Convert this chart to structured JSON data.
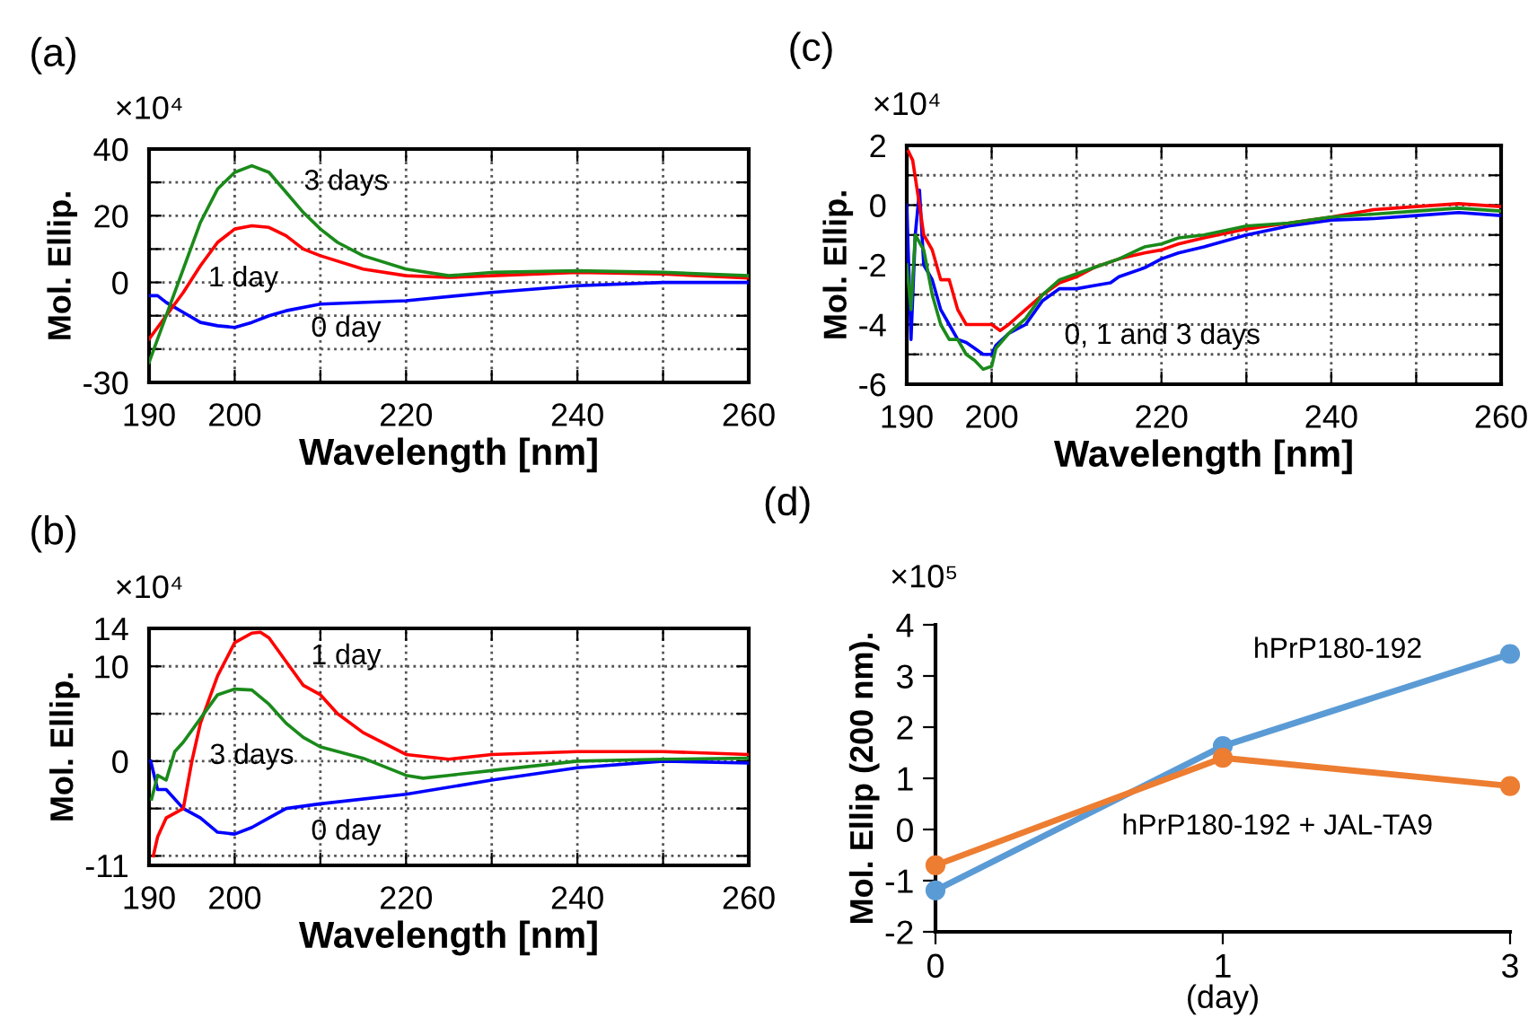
{
  "chart_data": [
    {
      "type": "line",
      "title": "(a)",
      "xlabel": "Wavelength [nm]",
      "ylabel": "Mol. Ellip.",
      "annotations": [
        "×10⁴"
      ],
      "series": [
        {
          "name": "0 day",
          "color": "#0000ff",
          "x": [
            190,
            191,
            192,
            194,
            196,
            198,
            200,
            202,
            204,
            206,
            210,
            220,
            230,
            240,
            250,
            260
          ],
          "values": [
            -4,
            -4,
            -6,
            -9,
            -12,
            -13,
            -13.5,
            -12,
            -10,
            -8.5,
            -6.5,
            -5.5,
            -3,
            -1,
            0,
            0
          ]
        },
        {
          "name": "1 day",
          "color": "#ff0000",
          "x": [
            190,
            192,
            194,
            196,
            198,
            200,
            202,
            204,
            206,
            208,
            210,
            215,
            220,
            225,
            230,
            240,
            250,
            260
          ],
          "values": [
            -17,
            -10,
            -3,
            5,
            12,
            16,
            17,
            16.5,
            14,
            10,
            8,
            4,
            2,
            1.5,
            2,
            3,
            2.5,
            1.3
          ]
        },
        {
          "name": "3 days",
          "color": "#1a8a1a",
          "x": [
            190,
            192,
            194,
            196,
            198,
            200,
            202,
            204,
            206,
            208,
            210,
            212,
            215,
            220,
            225,
            230,
            240,
            250,
            260
          ],
          "values": [
            -24,
            -10,
            4,
            18,
            28,
            33,
            35,
            33,
            27,
            21,
            16,
            12,
            8,
            4,
            2,
            3,
            3.5,
            3,
            2
          ]
        }
      ],
      "xlim": [
        190,
        260
      ],
      "ylim": [
        -30,
        40
      ],
      "xticks": [
        190,
        200,
        {
          "value": 210,
          "label": null
        },
        220,
        {
          "value": 230,
          "label": null
        },
        240,
        {
          "value": 250,
          "label": null
        },
        260
      ],
      "yticks": [
        -30,
        {
          "value": -20,
          "label": null
        },
        {
          "value": -10,
          "label": null
        },
        0,
        {
          "value": 10,
          "label": null
        },
        20,
        {
          "value": 30,
          "label": null
        },
        40
      ],
      "grid": true
    },
    {
      "type": "line",
      "title": "(c)",
      "xlabel": "Wavelength [nm]",
      "ylabel": "Mol. Ellip.",
      "annotations": [
        "×10⁴",
        "0, 1 and 3 days"
      ],
      "series": [
        {
          "color": "#0000ff",
          "x": [
            190,
            190.5,
            191,
            191.5,
            192,
            193,
            194,
            195,
            196,
            197,
            198,
            199,
            200,
            200.5,
            202,
            204,
            206,
            208,
            210,
            212,
            214,
            215,
            218,
            220,
            222,
            225,
            230,
            235,
            240,
            245,
            250,
            255,
            260
          ],
          "values": [
            0,
            -4.5,
            -1,
            0.5,
            -2,
            -2.5,
            -3.5,
            -4,
            -4.5,
            -4.6,
            -4.8,
            -5,
            -5,
            -4.7,
            -4.3,
            -4,
            -3.2,
            -2.8,
            -2.8,
            -2.7,
            -2.6,
            -2.4,
            -2.1,
            -1.8,
            -1.6,
            -1.4,
            -1.0,
            -0.7,
            -0.5,
            -0.45,
            -0.35,
            -0.25,
            -0.35
          ]
        },
        {
          "color": "#ff0000",
          "x": [
            190.2,
            190.7,
            191.5,
            192,
            193,
            194,
            195,
            196,
            197,
            198,
            200,
            201,
            202,
            204,
            206,
            208,
            210,
            212,
            215,
            218,
            220,
            222,
            225,
            230,
            235,
            240,
            245,
            250,
            255,
            260
          ],
          "values": [
            1.8,
            1.5,
            0,
            -1,
            -1.5,
            -2.5,
            -2.5,
            -3.5,
            -4,
            -4,
            -4,
            -4.2,
            -4,
            -3.5,
            -3,
            -2.6,
            -2.4,
            -2.1,
            -1.8,
            -1.6,
            -1.5,
            -1.3,
            -1.1,
            -0.8,
            -0.6,
            -0.4,
            -0.15,
            -0.05,
            0.05,
            -0.05
          ]
        },
        {
          "color": "#1a8a1a",
          "x": [
            190,
            190.5,
            191,
            192,
            193,
            194,
            195,
            196,
            197,
            198,
            199,
            200,
            200.5,
            202,
            204,
            206,
            208,
            210,
            212,
            215,
            218,
            220,
            222,
            225,
            230,
            235,
            240,
            245,
            250,
            255,
            260
          ],
          "values": [
            -2,
            -3.5,
            -1,
            -1.5,
            -3,
            -4,
            -4.5,
            -4.5,
            -5,
            -5.2,
            -5.5,
            -5.4,
            -4.8,
            -4.3,
            -3.8,
            -3,
            -2.5,
            -2.3,
            -2.1,
            -1.8,
            -1.4,
            -1.3,
            -1.1,
            -1.0,
            -0.7,
            -0.6,
            -0.4,
            -0.3,
            -0.2,
            -0.1,
            -0.2
          ]
        }
      ],
      "xlim": [
        190,
        260
      ],
      "ylim": [
        -6,
        2
      ],
      "xticks": [
        190,
        200,
        {
          "value": 210,
          "label": null
        },
        220,
        {
          "value": 230,
          "label": null
        },
        240,
        {
          "value": 250,
          "label": null
        },
        260
      ],
      "yticks": [
        -6,
        {
          "value": -5,
          "label": null
        },
        -4,
        {
          "value": -3,
          "label": null
        },
        -2,
        {
          "value": -1,
          "label": null
        },
        0,
        {
          "value": 1,
          "label": null
        },
        2
      ],
      "grid": true
    },
    {
      "type": "line",
      "title": "(b)",
      "xlabel": "Wavelength [nm]",
      "ylabel": "Mol. Ellip.",
      "annotations": [
        "×10⁴"
      ],
      "series": [
        {
          "name": "0 day",
          "color": "#0000ff",
          "x": [
            190.2,
            191,
            192,
            194,
            196,
            198,
            200,
            202,
            204,
            206,
            210,
            220,
            230,
            240,
            250,
            260
          ],
          "values": [
            0,
            -3,
            -3,
            -5,
            -6,
            -7.5,
            -7.7,
            -7,
            -6,
            -5,
            -4.5,
            -3.5,
            -2,
            -0.7,
            0,
            -0.2
          ]
        },
        {
          "name": "1 day",
          "color": "#ff0000",
          "x": [
            190.5,
            191,
            192,
            194,
            195,
            196,
            198,
            200,
            202,
            203,
            204,
            206,
            208,
            210,
            212,
            215,
            220,
            225,
            230,
            240,
            250,
            260
          ],
          "values": [
            -10,
            -8,
            -6,
            -5,
            0,
            4,
            9,
            12.5,
            13.5,
            13.6,
            13,
            10.5,
            8,
            7,
            5,
            3,
            0.7,
            0.2,
            0.7,
            1,
            1,
            0.7
          ]
        },
        {
          "name": "3 days",
          "color": "#1a8a1a",
          "x": [
            190.3,
            191,
            192,
            193,
            194,
            196,
            198,
            200,
            202,
            204,
            206,
            208,
            210,
            215,
            220,
            222,
            225,
            230,
            240,
            250,
            260
          ],
          "values": [
            -4,
            -1.5,
            -2,
            1,
            2,
            4.5,
            7,
            7.6,
            7.5,
            6,
            4,
            2.5,
            1.5,
            0.3,
            -1.5,
            -1.8,
            -1.5,
            -1,
            0,
            0.2,
            0.3
          ]
        }
      ],
      "xlim": [
        190,
        260
      ],
      "ylim": [
        -11,
        14
      ],
      "xticks": [
        190,
        200,
        {
          "value": 210,
          "label": null
        },
        220,
        {
          "value": 230,
          "label": null
        },
        240,
        {
          "value": 250,
          "label": null
        },
        260
      ],
      "yticks": [
        -11,
        {
          "value": -10,
          "label": null
        },
        {
          "value": -5,
          "label": null
        },
        0,
        {
          "value": 5,
          "label": null
        },
        10,
        14
      ],
      "grid": true
    },
    {
      "type": "line",
      "title": "(d)",
      "xlabel": "(day)",
      "ylabel": "Mol. Ellip (200 nm).",
      "annotations": [
        "×10⁵"
      ],
      "categories": [
        "0",
        "1",
        "3"
      ],
      "series": [
        {
          "name": "hPrP180-192",
          "color": "#5b9bd5",
          "values": [
            -1.19,
            1.63,
            3.43
          ]
        },
        {
          "name": "hPrP180-192 + JAL-TA9",
          "color": "#ed7d31",
          "values": [
            -0.7,
            1.4,
            0.85
          ]
        }
      ],
      "ylim": [
        -2,
        4
      ],
      "yticks": [
        -2,
        -1,
        0,
        1,
        2,
        3,
        4
      ],
      "marker": "circle"
    }
  ]
}
